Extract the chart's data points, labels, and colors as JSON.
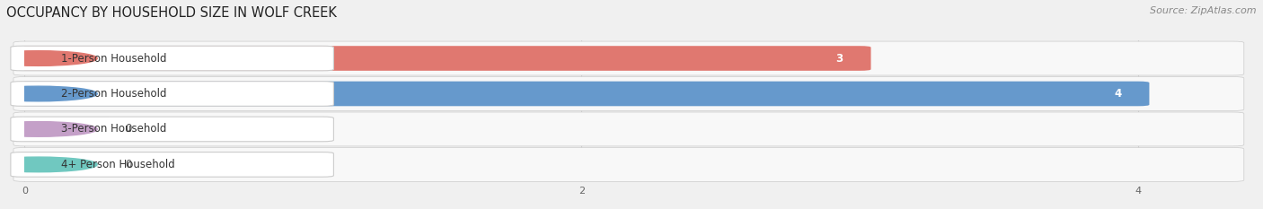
{
  "title": "OCCUPANCY BY HOUSEHOLD SIZE IN WOLF CREEK",
  "source": "Source: ZipAtlas.com",
  "categories": [
    "1-Person Household",
    "2-Person Household",
    "3-Person Household",
    "4+ Person Household"
  ],
  "values": [
    3,
    4,
    0,
    0
  ],
  "bar_colors": [
    "#E07870",
    "#6699CC",
    "#C4A0C8",
    "#70C8C0"
  ],
  "xlim_max": 4.4,
  "xticks": [
    0,
    2,
    4
  ],
  "background_color": "#f0f0f0",
  "row_bg_color": "#e8e8e8",
  "row_inner_color": "#f8f8f8",
  "title_fontsize": 10.5,
  "source_fontsize": 8,
  "label_fontsize": 8.5,
  "value_fontsize": 8.5,
  "figsize": [
    14.06,
    2.33
  ],
  "dpi": 100
}
